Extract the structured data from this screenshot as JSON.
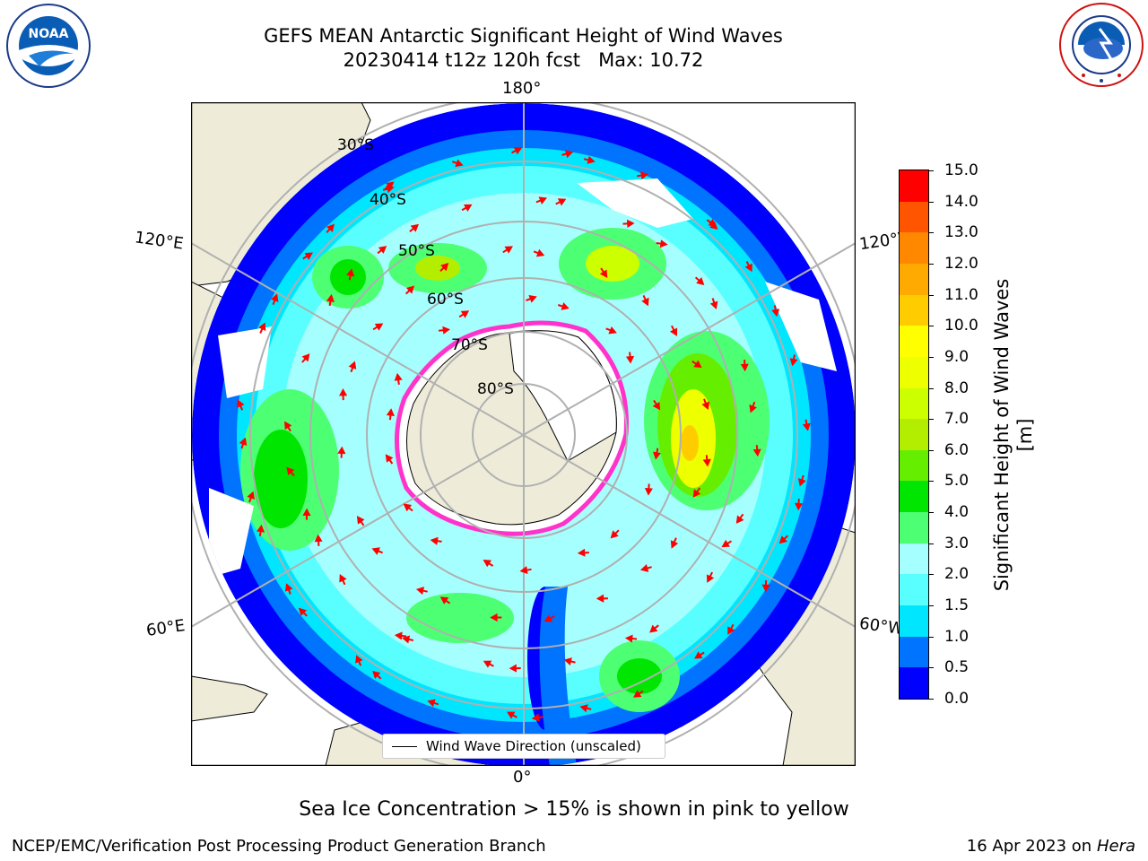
{
  "header": {
    "title_line1": "GEFS MEAN Antarctic Significant Height of Wind Waves",
    "title_line2": "20230414 t12z 120h fcst   Max: 10.72"
  },
  "logos": {
    "left": {
      "name": "noaa-logo",
      "text": "NOAA",
      "ring_text": "NATIONAL OCEANIC AND ATMOSPHERIC ADMINISTRATION · U.S. DEPARTMENT OF COMMERCE"
    },
    "right": {
      "name": "national-weather-service-logo",
      "ring_text": "NATIONAL WEATHER SERVICE"
    }
  },
  "map": {
    "projection": "south-polar-stereographic",
    "longitude_labels": {
      "top": "180°",
      "bottom": "0°",
      "left_upper": "120°E",
      "left_lower": "60°E",
      "right_upper": "120°W",
      "right_lower": "60°W"
    },
    "latitude_labels": [
      "30°S",
      "40°S",
      "50°S",
      "60°S",
      "70°S",
      "80°S"
    ],
    "colors": {
      "land": "#eeecd9",
      "ice_edge": "#ff33cc",
      "arrows": "#ff0000",
      "grid": "#b0b0b0"
    },
    "legend_label": "Wind Wave Direction (unscaled)"
  },
  "colorbar": {
    "title": "Significant Height of Wind Waves [m]",
    "ticks": [
      "0.0",
      "0.5",
      "1.0",
      "1.5",
      "2.0",
      "3.0",
      "4.0",
      "5.0",
      "6.0",
      "7.0",
      "8.0",
      "9.0",
      "10.0",
      "11.0",
      "12.0",
      "13.0",
      "14.0",
      "15.0"
    ],
    "colors": [
      "#0000ff",
      "#0073ff",
      "#00e6ff",
      "#59ffff",
      "#a6ffff",
      "#4dff73",
      "#00e600",
      "#66ee00",
      "#b3ee00",
      "#ccff00",
      "#eeff00",
      "#ffff00",
      "#ffcc00",
      "#ffaa00",
      "#ff8800",
      "#ff5500",
      "#ff0000"
    ]
  },
  "caption": "Sea Ice Concentration > 15% is shown in pink to yellow",
  "footer": {
    "left": "NCEP/EMC/Verification Post Processing Product Generation Branch",
    "right_prefix": "16 Apr 2023 on ",
    "right_host": "Hera"
  }
}
